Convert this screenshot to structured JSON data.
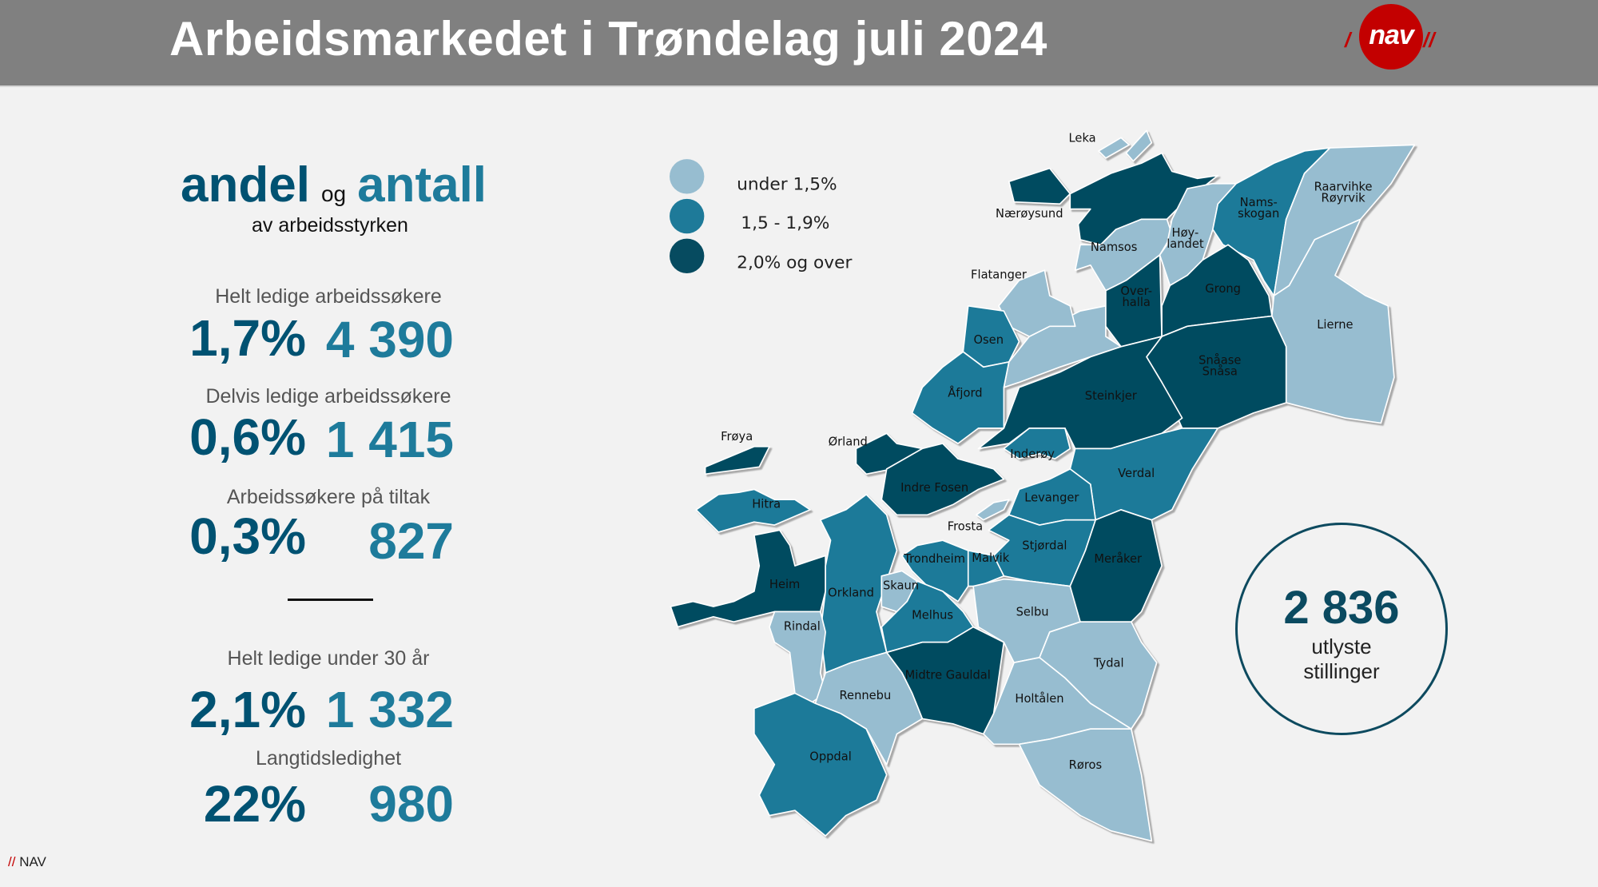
{
  "header": {
    "title": "Arbeidsmarkedet i Trøndelag juli 2024",
    "logo_text": "nav"
  },
  "intro": {
    "andel": "andel",
    "og": "og",
    "antall": "antall",
    "subtitle": "av arbeidsstyrken"
  },
  "stats": [
    {
      "label": "Helt ledige arbeidssøkere",
      "percent": "1,7%",
      "count": "4 390"
    },
    {
      "label": "Delvis ledige arbeidssøkere",
      "percent": "0,6%",
      "count": "1 415"
    },
    {
      "label": "Arbeidssøkere på tiltak",
      "percent": "0,3%",
      "count": "827"
    },
    {
      "label": "Helt ledige under 30 år",
      "percent": "2,1%",
      "count": "1 332"
    },
    {
      "label": "Langtidsledighet",
      "percent": "22%",
      "count": "980"
    }
  ],
  "legend": [
    {
      "label": "under 1,5%",
      "level": "low"
    },
    {
      "label": "1,5 - 1,9%",
      "level": "mid"
    },
    {
      "label": "2,0% og over",
      "level": "high"
    }
  ],
  "colors": {
    "low": "#97bdd0",
    "mid": "#1e7a99",
    "high": "#064b60",
    "nav_red": "#c30000"
  },
  "municipalities": [
    {
      "name": "Leka",
      "level": "low"
    },
    {
      "name": "Nærøysund",
      "level": "high"
    },
    {
      "name": "Namsos",
      "level": "low"
    },
    {
      "name": "Høy-\nlandet",
      "level": "low"
    },
    {
      "name": "Nams-\nskogan",
      "level": "mid"
    },
    {
      "name": "Raarvihke\nRøyrvik",
      "level": "low"
    },
    {
      "name": "Lierne",
      "level": "low"
    },
    {
      "name": "Flatanger",
      "level": "low"
    },
    {
      "name": "Over-\nhalla",
      "level": "high"
    },
    {
      "name": "Grong",
      "level": "high"
    },
    {
      "name": "Osen",
      "level": "mid"
    },
    {
      "name": "Snåase\nSnåsa",
      "level": "high"
    },
    {
      "name": "Åfjord",
      "level": "mid"
    },
    {
      "name": "Steinkjer",
      "level": "high"
    },
    {
      "name": "Inderøy",
      "level": "mid"
    },
    {
      "name": "Frøya",
      "level": "high"
    },
    {
      "name": "Ørland",
      "level": "high"
    },
    {
      "name": "Verdal",
      "level": "mid"
    },
    {
      "name": "Indre Fosen",
      "level": "high"
    },
    {
      "name": "Levanger",
      "level": "mid"
    },
    {
      "name": "Hitra",
      "level": "mid"
    },
    {
      "name": "Frosta",
      "level": "low"
    },
    {
      "name": "Stjørdal",
      "level": "mid"
    },
    {
      "name": "Trondheim",
      "level": "mid"
    },
    {
      "name": "Malvik",
      "level": "mid"
    },
    {
      "name": "Meråker",
      "level": "high"
    },
    {
      "name": "Heim",
      "level": "high"
    },
    {
      "name": "Orkland",
      "level": "mid"
    },
    {
      "name": "Skaun",
      "level": "low"
    },
    {
      "name": "Selbu",
      "level": "low"
    },
    {
      "name": "Melhus",
      "level": "mid"
    },
    {
      "name": "Rindal",
      "level": "low"
    },
    {
      "name": "Midtre Gauldal",
      "level": "high"
    },
    {
      "name": "Tydal",
      "level": "low"
    },
    {
      "name": "Rennebu",
      "level": "low"
    },
    {
      "name": "Holtålen",
      "level": "low"
    },
    {
      "name": "Oppdal",
      "level": "mid"
    },
    {
      "name": "Røros",
      "level": "low"
    }
  ],
  "vacancies": {
    "count": "2 836",
    "line1": "utlyste",
    "line2": "stillinger"
  },
  "footer": {
    "slashes": "//",
    "text": "NAV"
  }
}
